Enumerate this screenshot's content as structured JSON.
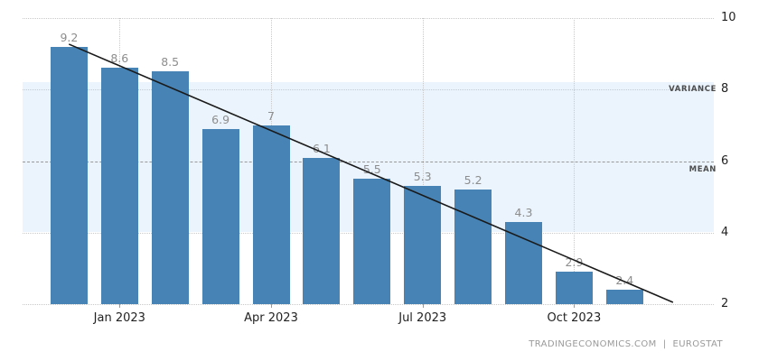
{
  "chart_data": {
    "type": "bar",
    "title": "",
    "categories": [
      "",
      "Jan 2023",
      "",
      "",
      "Apr 2023",
      "",
      "",
      "Jul 2023",
      "",
      "",
      "Oct 2023",
      ""
    ],
    "values": [
      9.2,
      8.6,
      8.5,
      6.9,
      7,
      6.1,
      5.5,
      5.3,
      5.2,
      4.3,
      2.9,
      2.4
    ],
    "bar_labels": [
      "9.2",
      "8.6",
      "8.5",
      "6.9",
      "7",
      "6.1",
      "5.5",
      "5.3",
      "5.2",
      "4.3",
      "2.9",
      "2.4"
    ],
    "ylim": [
      2,
      10
    ],
    "y_ticks": [
      10,
      8,
      6,
      4,
      2
    ],
    "grid": true,
    "legend_position": "none",
    "band": {
      "label": "VARIANCE",
      "top_value": 8.2,
      "bottom_value": 4.03
    },
    "mean_line": {
      "label": "MEAN",
      "value": 6
    },
    "trend_line": {
      "start_x_frac": 0.067,
      "start_value": 9.27,
      "end_x_frac": 0.941,
      "end_value": 2.05
    },
    "colors": {
      "bar": "#4783b4",
      "band": "#ebf4fc",
      "grid": "#c9c9c9",
      "mean_line": "#999999",
      "trend": "#1a1a1a",
      "value_label": "#8d8d8d",
      "axis_label": "#222222",
      "side_label": "#4d4d4d",
      "credit": "#9a9a9a"
    }
  },
  "footer": {
    "site": "TRADINGECONOMICS.COM",
    "separator": "|",
    "source": "EUROSTAT"
  }
}
